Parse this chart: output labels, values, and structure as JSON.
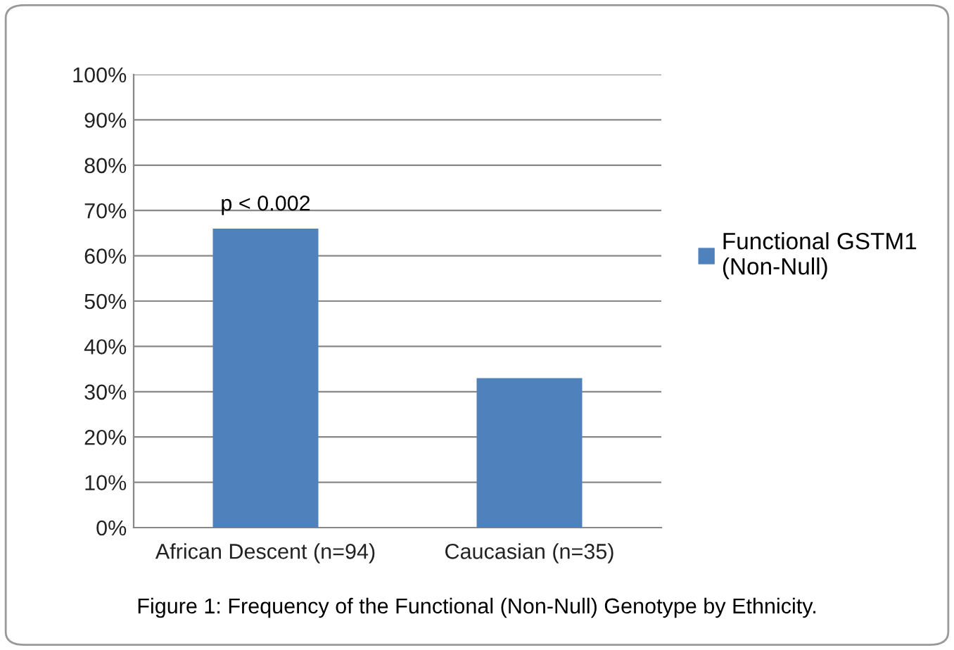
{
  "chart_data": {
    "type": "bar",
    "categories": [
      "African Descent (n=94)",
      "Caucasian (n=35)"
    ],
    "series": [
      {
        "name": "Functional GSTM1\n(Non-Null)",
        "color": "#4f81bd",
        "values": [
          66,
          33
        ]
      }
    ],
    "ylim": [
      0,
      100
    ],
    "yticks": [
      {
        "value": 0,
        "label": "0%"
      },
      {
        "value": 10,
        "label": "10%"
      },
      {
        "value": 20,
        "label": "20%"
      },
      {
        "value": 30,
        "label": "30%"
      },
      {
        "value": 40,
        "label": "40%"
      },
      {
        "value": 50,
        "label": "50%"
      },
      {
        "value": 60,
        "label": "60%"
      },
      {
        "value": 70,
        "label": "70%"
      },
      {
        "value": 80,
        "label": "80%"
      },
      {
        "value": 90,
        "label": "90%"
      },
      {
        "value": 100,
        "label": "100%"
      }
    ],
    "grid": "y",
    "legend": "right",
    "annotations": [
      "p < 0.002",
      "Figure 1: Frequency of the Functional (Non-Null) Genotype by Ethnicity."
    ]
  }
}
